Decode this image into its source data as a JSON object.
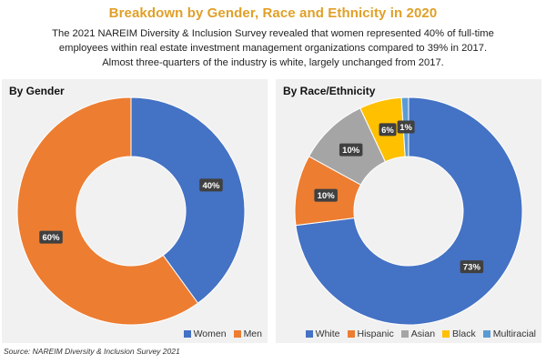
{
  "header": {
    "title": "Breakdown by Gender, Race and Ethnicity in 2020",
    "subtitle_lines": [
      "The 2021 NAREIM Diversity & Inclusion Survey revealed that women represented 40% of full-time",
      "employees within real estate investment management organizations compared to 39% in 2017.",
      "Almost three-quarters of the industry is white, largely unchanged from 2017."
    ]
  },
  "chart_data": [
    {
      "type": "pie",
      "title": "By Gender",
      "categories": [
        "Women",
        "Men"
      ],
      "values": [
        40,
        60
      ],
      "data_labels": [
        "40%",
        "60%"
      ],
      "colors": [
        "#4472c4",
        "#ed7d31"
      ],
      "legend_position": "bottom-right"
    },
    {
      "type": "pie",
      "title": "By Race/Ethnicity",
      "categories": [
        "White",
        "Hispanic",
        "Asian",
        "Black",
        "Multiracial"
      ],
      "values": [
        73,
        10,
        10,
        6,
        1
      ],
      "data_labels": [
        "73%",
        "10%",
        "10%",
        "6%",
        "1%"
      ],
      "colors": [
        "#4472c4",
        "#ed7d31",
        "#a5a5a5",
        "#ffc000",
        "#5b9bd5"
      ],
      "legend_position": "bottom-right"
    }
  ],
  "footer": {
    "source": "Source: NAREIM Diversity & Inclusion Survey 2021"
  }
}
